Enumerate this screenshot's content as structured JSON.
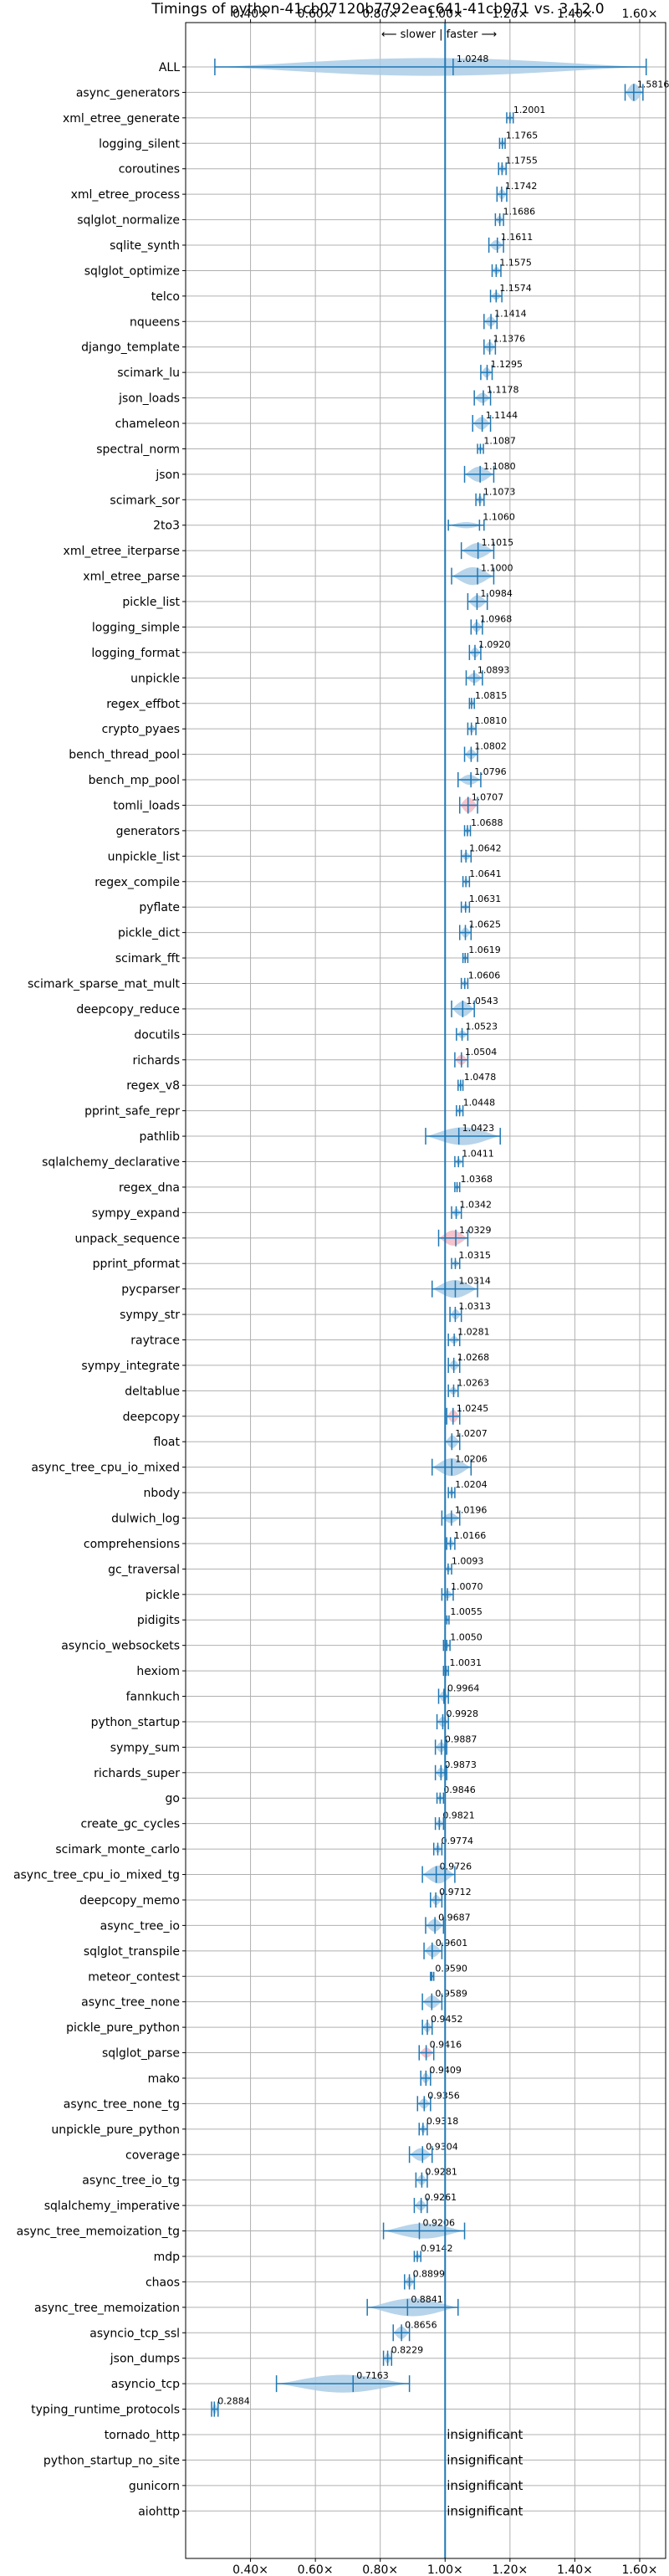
{
  "chart_data": {
    "type": "violin",
    "title": "Timings of python-41cb07120b7792eac641-41cb071 vs. 3.12.0",
    "subtitle": "⟵ slower | faster ⟶",
    "xlim": [
      0.2,
      1.68
    ],
    "xticks": [
      0.4,
      0.6,
      0.8,
      1.0,
      1.2,
      1.4,
      1.6
    ],
    "xtick_labels": [
      "0.40×",
      "0.60×",
      "0.80×",
      "1.00×",
      "1.20×",
      "1.40×",
      "1.60×"
    ],
    "grid": true,
    "colors": {
      "violin": "#aacde6",
      "violin_significant_slower": "#f2b8c4",
      "line": "#1f77b4",
      "refline": "#1f77b4"
    },
    "benchmarks": [
      {
        "name": "ALL",
        "value": 1.0248,
        "label": "1.0248",
        "lo": 0.29,
        "hi": 1.62,
        "width": 0.35
      },
      {
        "name": "async_generators",
        "value": 1.5816,
        "label": "1.5816",
        "lo": 1.555,
        "hi": 1.61,
        "width": 0.35
      },
      {
        "name": "xml_etree_generate",
        "value": 1.2001,
        "label": "1.2001",
        "lo": 1.19,
        "hi": 1.21,
        "width": 0.12
      },
      {
        "name": "logging_silent",
        "value": 1.1765,
        "label": "1.1765",
        "lo": 1.168,
        "hi": 1.185,
        "width": 0.12
      },
      {
        "name": "coroutines",
        "value": 1.1755,
        "label": "1.1755",
        "lo": 1.165,
        "hi": 1.188,
        "width": 0.15
      },
      {
        "name": "xml_etree_process",
        "value": 1.1742,
        "label": "1.1742",
        "lo": 1.16,
        "hi": 1.19,
        "width": 0.2
      },
      {
        "name": "sqlglot_normalize",
        "value": 1.1686,
        "label": "1.1686",
        "lo": 1.155,
        "hi": 1.18,
        "width": 0.15
      },
      {
        "name": "sqlite_synth",
        "value": 1.1611,
        "label": "1.1611",
        "lo": 1.135,
        "hi": 1.18,
        "width": 0.2
      },
      {
        "name": "sqlglot_optimize",
        "value": 1.1575,
        "label": "1.1575",
        "lo": 1.145,
        "hi": 1.172,
        "width": 0.15
      },
      {
        "name": "telco",
        "value": 1.1574,
        "label": "1.1574",
        "lo": 1.14,
        "hi": 1.175,
        "width": 0.15
      },
      {
        "name": "nqueens",
        "value": 1.1414,
        "label": "1.1414",
        "lo": 1.12,
        "hi": 1.16,
        "width": 0.2
      },
      {
        "name": "django_template",
        "value": 1.1376,
        "label": "1.1376",
        "lo": 1.12,
        "hi": 1.155,
        "width": 0.2
      },
      {
        "name": "scimark_lu",
        "value": 1.1295,
        "label": "1.1295",
        "lo": 1.11,
        "hi": 1.145,
        "width": 0.2
      },
      {
        "name": "json_loads",
        "value": 1.1178,
        "label": "1.1178",
        "lo": 1.09,
        "hi": 1.14,
        "width": 0.2
      },
      {
        "name": "chameleon",
        "value": 1.1144,
        "label": "1.1144",
        "lo": 1.085,
        "hi": 1.14,
        "width": 0.25
      },
      {
        "name": "spectral_norm",
        "value": 1.1087,
        "label": "1.1087",
        "lo": 1.1,
        "hi": 1.118,
        "width": 0.1
      },
      {
        "name": "json",
        "value": 1.108,
        "label": "1.1080",
        "lo": 1.06,
        "hi": 1.15,
        "width": 0.3
      },
      {
        "name": "scimark_sor",
        "value": 1.1073,
        "label": "1.1073",
        "lo": 1.095,
        "hi": 1.12,
        "width": 0.15
      },
      {
        "name": "2to3",
        "value": 1.106,
        "label": "1.1060",
        "lo": 1.01,
        "hi": 1.12,
        "width": 0.12
      },
      {
        "name": "xml_etree_iterparse",
        "value": 1.1015,
        "label": "1.1015",
        "lo": 1.05,
        "hi": 1.15,
        "width": 0.3
      },
      {
        "name": "xml_etree_parse",
        "value": 1.1,
        "label": "1.1000",
        "lo": 1.02,
        "hi": 1.15,
        "width": 0.35
      },
      {
        "name": "pickle_list",
        "value": 1.0984,
        "label": "1.0984",
        "lo": 1.07,
        "hi": 1.13,
        "width": 0.25
      },
      {
        "name": "logging_simple",
        "value": 1.0968,
        "label": "1.0968",
        "lo": 1.08,
        "hi": 1.115,
        "width": 0.2
      },
      {
        "name": "logging_format",
        "value": 1.092,
        "label": "1.0920",
        "lo": 1.075,
        "hi": 1.11,
        "width": 0.2
      },
      {
        "name": "unpickle",
        "value": 1.0893,
        "label": "1.0893",
        "lo": 1.065,
        "hi": 1.115,
        "width": 0.2
      },
      {
        "name": "regex_effbot",
        "value": 1.0815,
        "label": "1.0815",
        "lo": 1.075,
        "hi": 1.09,
        "width": 0.12
      },
      {
        "name": "crypto_pyaes",
        "value": 1.081,
        "label": "1.0810",
        "lo": 1.07,
        "hi": 1.095,
        "width": 0.15
      },
      {
        "name": "bench_thread_pool",
        "value": 1.0802,
        "label": "1.0802",
        "lo": 1.06,
        "hi": 1.1,
        "width": 0.2
      },
      {
        "name": "bench_mp_pool",
        "value": 1.0796,
        "label": "1.0796",
        "lo": 1.04,
        "hi": 1.11,
        "width": 0.2
      },
      {
        "name": "tomli_loads",
        "value": 1.0707,
        "label": "1.0707",
        "lo": 1.045,
        "hi": 1.1,
        "width": 0.3,
        "slower": true
      },
      {
        "name": "generators",
        "value": 1.0688,
        "label": "1.0688",
        "lo": 1.06,
        "hi": 1.078,
        "width": 0.12
      },
      {
        "name": "unpickle_list",
        "value": 1.0642,
        "label": "1.0642",
        "lo": 1.05,
        "hi": 1.08,
        "width": 0.15
      },
      {
        "name": "regex_compile",
        "value": 1.0641,
        "label": "1.0641",
        "lo": 1.055,
        "hi": 1.075,
        "width": 0.12
      },
      {
        "name": "pyflate",
        "value": 1.0631,
        "label": "1.0631",
        "lo": 1.05,
        "hi": 1.075,
        "width": 0.12
      },
      {
        "name": "pickle_dict",
        "value": 1.0625,
        "label": "1.0625",
        "lo": 1.045,
        "hi": 1.08,
        "width": 0.2
      },
      {
        "name": "scimark_fft",
        "value": 1.0619,
        "label": "1.0619",
        "lo": 1.055,
        "hi": 1.07,
        "width": 0.1
      },
      {
        "name": "scimark_sparse_mat_mult",
        "value": 1.0606,
        "label": "1.0606",
        "lo": 1.05,
        "hi": 1.07,
        "width": 0.12
      },
      {
        "name": "deepcopy_reduce",
        "value": 1.0543,
        "label": "1.0543",
        "lo": 1.02,
        "hi": 1.09,
        "width": 0.3
      },
      {
        "name": "docutils",
        "value": 1.0523,
        "label": "1.0523",
        "lo": 1.035,
        "hi": 1.07,
        "width": 0.15
      },
      {
        "name": "richards",
        "value": 1.0504,
        "label": "1.0504",
        "lo": 1.03,
        "hi": 1.07,
        "width": 0.2,
        "slower": true
      },
      {
        "name": "regex_v8",
        "value": 1.0478,
        "label": "1.0478",
        "lo": 1.04,
        "hi": 1.055,
        "width": 0.12
      },
      {
        "name": "pprint_safe_repr",
        "value": 1.0448,
        "label": "1.0448",
        "lo": 1.035,
        "hi": 1.055,
        "width": 0.12
      },
      {
        "name": "pathlib",
        "value": 1.0423,
        "label": "1.0423",
        "lo": 0.94,
        "hi": 1.17,
        "width": 0.35
      },
      {
        "name": "sqlalchemy_declarative",
        "value": 1.0411,
        "label": "1.0411",
        "lo": 1.03,
        "hi": 1.055,
        "width": 0.12
      },
      {
        "name": "regex_dna",
        "value": 1.0368,
        "label": "1.0368",
        "lo": 1.03,
        "hi": 1.045,
        "width": 0.1
      },
      {
        "name": "sympy_expand",
        "value": 1.0342,
        "label": "1.0342",
        "lo": 1.02,
        "hi": 1.05,
        "width": 0.15
      },
      {
        "name": "unpack_sequence",
        "value": 1.0329,
        "label": "1.0329",
        "lo": 0.98,
        "hi": 1.07,
        "width": 0.3,
        "slower": true
      },
      {
        "name": "pprint_pformat",
        "value": 1.0315,
        "label": "1.0315",
        "lo": 1.02,
        "hi": 1.045,
        "width": 0.12
      },
      {
        "name": "pycparser",
        "value": 1.0314,
        "label": "1.0314",
        "lo": 0.96,
        "hi": 1.1,
        "width": 0.35
      },
      {
        "name": "sympy_str",
        "value": 1.0313,
        "label": "1.0313",
        "lo": 1.015,
        "hi": 1.05,
        "width": 0.2
      },
      {
        "name": "raytrace",
        "value": 1.0281,
        "label": "1.0281",
        "lo": 1.01,
        "hi": 1.045,
        "width": 0.15
      },
      {
        "name": "sympy_integrate",
        "value": 1.0268,
        "label": "1.0268",
        "lo": 1.01,
        "hi": 1.045,
        "width": 0.2
      },
      {
        "name": "deltablue",
        "value": 1.0263,
        "label": "1.0263",
        "lo": 1.01,
        "hi": 1.04,
        "width": 0.15
      },
      {
        "name": "deepcopy",
        "value": 1.0245,
        "label": "1.0245",
        "lo": 1.005,
        "hi": 1.045,
        "width": 0.25,
        "slower": true
      },
      {
        "name": "float",
        "value": 1.0207,
        "label": "1.0207",
        "lo": 1.0,
        "hi": 1.045,
        "width": 0.25
      },
      {
        "name": "async_tree_cpu_io_mixed",
        "value": 1.0206,
        "label": "1.0206",
        "lo": 0.96,
        "hi": 1.08,
        "width": 0.35
      },
      {
        "name": "nbody",
        "value": 1.0204,
        "label": "1.0204",
        "lo": 1.01,
        "hi": 1.03,
        "width": 0.12
      },
      {
        "name": "dulwich_log",
        "value": 1.0196,
        "label": "1.0196",
        "lo": 0.99,
        "hi": 1.045,
        "width": 0.2
      },
      {
        "name": "comprehensions",
        "value": 1.0166,
        "label": "1.0166",
        "lo": 1.005,
        "hi": 1.03,
        "width": 0.15
      },
      {
        "name": "gc_traversal",
        "value": 1.0093,
        "label": "1.0093",
        "lo": 1.0,
        "hi": 1.02,
        "width": 0.12
      },
      {
        "name": "pickle",
        "value": 1.007,
        "label": "1.0070",
        "lo": 0.99,
        "hi": 1.025,
        "width": 0.15
      },
      {
        "name": "pidigits",
        "value": 1.0055,
        "label": "1.0055",
        "lo": 1.0,
        "hi": 1.012,
        "width": 0.08
      },
      {
        "name": "asyncio_websockets",
        "value": 1.005,
        "label": "1.0050",
        "lo": 0.995,
        "hi": 1.015,
        "width": 0.12
      },
      {
        "name": "hexiom",
        "value": 1.0031,
        "label": "1.0031",
        "lo": 0.995,
        "hi": 1.01,
        "width": 0.1
      },
      {
        "name": "fannkuch",
        "value": 0.9964,
        "label": "0.9964",
        "lo": 0.98,
        "hi": 1.01,
        "width": 0.2
      },
      {
        "name": "python_startup",
        "value": 0.9928,
        "label": "0.9928",
        "lo": 0.975,
        "hi": 1.01,
        "width": 0.2
      },
      {
        "name": "sympy_sum",
        "value": 0.9887,
        "label": "0.9887",
        "lo": 0.97,
        "hi": 1.005,
        "width": 0.2
      },
      {
        "name": "richards_super",
        "value": 0.9873,
        "label": "0.9873",
        "lo": 0.97,
        "hi": 1.005,
        "width": 0.2
      },
      {
        "name": "go",
        "value": 0.9846,
        "label": "0.9846",
        "lo": 0.975,
        "hi": 0.995,
        "width": 0.12
      },
      {
        "name": "create_gc_cycles",
        "value": 0.9821,
        "label": "0.9821",
        "lo": 0.97,
        "hi": 0.995,
        "width": 0.15
      },
      {
        "name": "scimark_monte_carlo",
        "value": 0.9774,
        "label": "0.9774",
        "lo": 0.965,
        "hi": 0.99,
        "width": 0.15
      },
      {
        "name": "async_tree_cpu_io_mixed_tg",
        "value": 0.9726,
        "label": "0.9726",
        "lo": 0.93,
        "hi": 1.03,
        "width": 0.35
      },
      {
        "name": "deepcopy_memo",
        "value": 0.9712,
        "label": "0.9712",
        "lo": 0.955,
        "hi": 0.99,
        "width": 0.2
      },
      {
        "name": "async_tree_io",
        "value": 0.9687,
        "label": "0.9687",
        "lo": 0.94,
        "hi": 0.995,
        "width": 0.25
      },
      {
        "name": "sqlglot_transpile",
        "value": 0.9601,
        "label": "0.9601",
        "lo": 0.935,
        "hi": 0.99,
        "width": 0.25
      },
      {
        "name": "meteor_contest",
        "value": 0.959,
        "label": "0.9590",
        "lo": 0.955,
        "hi": 0.965,
        "width": 0.08
      },
      {
        "name": "async_tree_none",
        "value": 0.9589,
        "label": "0.9589",
        "lo": 0.93,
        "hi": 0.99,
        "width": 0.25
      },
      {
        "name": "pickle_pure_python",
        "value": 0.9452,
        "label": "0.9452",
        "lo": 0.93,
        "hi": 0.96,
        "width": 0.2
      },
      {
        "name": "sqlglot_parse",
        "value": 0.9416,
        "label": "0.9416",
        "lo": 0.92,
        "hi": 0.965,
        "width": 0.2,
        "slower": true
      },
      {
        "name": "mako",
        "value": 0.9409,
        "label": "0.9409",
        "lo": 0.925,
        "hi": 0.955,
        "width": 0.2
      },
      {
        "name": "async_tree_none_tg",
        "value": 0.9356,
        "label": "0.9356",
        "lo": 0.915,
        "hi": 0.955,
        "width": 0.2
      },
      {
        "name": "unpickle_pure_python",
        "value": 0.9318,
        "label": "0.9318",
        "lo": 0.92,
        "hi": 0.945,
        "width": 0.15
      },
      {
        "name": "coverage",
        "value": 0.9304,
        "label": "0.9304",
        "lo": 0.89,
        "hi": 0.96,
        "width": 0.25
      },
      {
        "name": "async_tree_io_tg",
        "value": 0.9281,
        "label": "0.9281",
        "lo": 0.91,
        "hi": 0.945,
        "width": 0.2
      },
      {
        "name": "sqlalchemy_imperative",
        "value": 0.9261,
        "label": "0.9261",
        "lo": 0.905,
        "hi": 0.945,
        "width": 0.2
      },
      {
        "name": "async_tree_memoization_tg",
        "value": 0.9206,
        "label": "0.9206",
        "lo": 0.81,
        "hi": 1.06,
        "width": 0.3
      },
      {
        "name": "mdp",
        "value": 0.9142,
        "label": "0.9142",
        "lo": 0.905,
        "hi": 0.925,
        "width": 0.12
      },
      {
        "name": "chaos",
        "value": 0.8899,
        "label": "0.8899",
        "lo": 0.875,
        "hi": 0.905,
        "width": 0.2
      },
      {
        "name": "async_tree_memoization",
        "value": 0.8841,
        "label": "0.8841",
        "lo": 0.76,
        "hi": 1.04,
        "width": 0.35
      },
      {
        "name": "asyncio_tcp_ssl",
        "value": 0.8656,
        "label": "0.8656",
        "lo": 0.84,
        "hi": 0.89,
        "width": 0.25
      },
      {
        "name": "json_dumps",
        "value": 0.8229,
        "label": "0.8229",
        "lo": 0.81,
        "hi": 0.835,
        "width": 0.2
      },
      {
        "name": "asyncio_tcp",
        "value": 0.7163,
        "label": "0.7163",
        "lo": 0.48,
        "hi": 0.89,
        "width": 0.35
      },
      {
        "name": "typing_runtime_protocols",
        "value": 0.2884,
        "label": "0.2884",
        "lo": 0.28,
        "hi": 0.3,
        "width": 0.2
      },
      {
        "name": "tornado_http",
        "insignificant": true
      },
      {
        "name": "python_startup_no_site",
        "insignificant": true
      },
      {
        "name": "gunicorn",
        "insignificant": true
      },
      {
        "name": "aiohttp",
        "insignificant": true
      }
    ],
    "insignificant_label": "insignificant"
  }
}
